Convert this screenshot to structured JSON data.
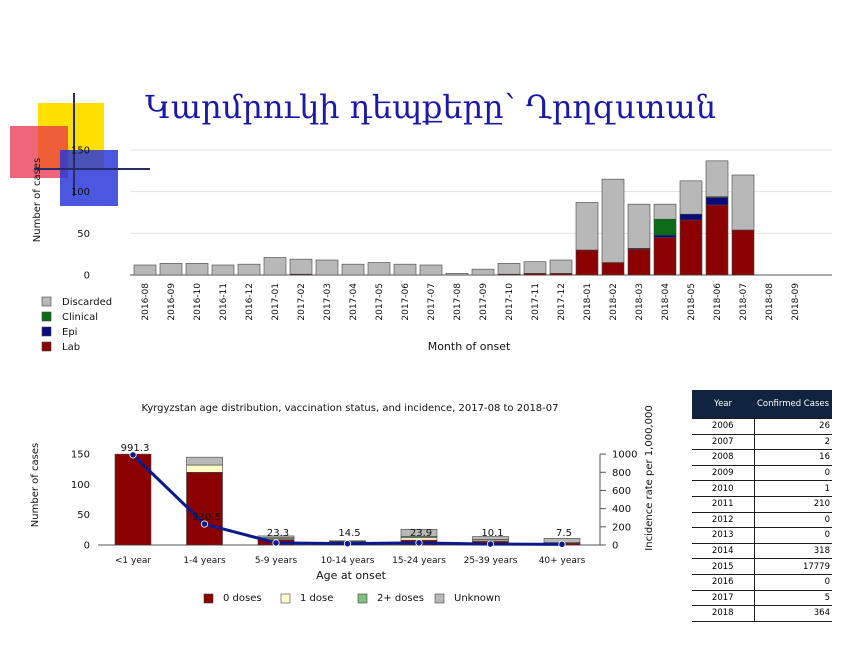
{
  "slide": {
    "title": "Կարմրուկի դեպքերը՝ Ղրղզստան",
    "colors": {
      "title": "#1a1aa6",
      "deco_yellow": "#ffe000",
      "deco_red": "#e8334a",
      "deco_blue": "#2a3ad8"
    }
  },
  "chart_data": [
    {
      "type": "bar",
      "stacked": true,
      "title": "",
      "xlabel": "Month of onset",
      "ylabel": "Number of cases",
      "ylim": [
        0,
        150
      ],
      "yticks": [
        0,
        50,
        100,
        150
      ],
      "grid": true,
      "legend_position": "bottom-left",
      "categories": [
        "2016-08",
        "2016-09",
        "2016-10",
        "2016-11",
        "2016-12",
        "2017-01",
        "2017-02",
        "2017-03",
        "2017-04",
        "2017-05",
        "2017-06",
        "2017-07",
        "2017-08",
        "2017-09",
        "2017-10",
        "2017-11",
        "2017-12",
        "2018-01",
        "2018-02",
        "2018-03",
        "2018-04",
        "2018-05",
        "2018-06",
        "2018-07",
        "2018-08",
        "2018-09"
      ],
      "series": [
        {
          "name": "Lab",
          "color": "#8b0000",
          "values": [
            0,
            0,
            0,
            0,
            0,
            0,
            1,
            0,
            0,
            0,
            0,
            0,
            0,
            0,
            1,
            2,
            2,
            30,
            15,
            31,
            45,
            66,
            84,
            54,
            0,
            0
          ]
        },
        {
          "name": "Epi",
          "color": "#0a0a7a",
          "values": [
            0,
            0,
            0,
            0,
            0,
            0,
            0,
            0,
            0,
            0,
            0,
            0,
            0,
            0,
            0,
            0,
            0,
            0,
            0,
            1,
            3,
            7,
            9,
            0,
            0,
            0
          ]
        },
        {
          "name": "Clinical",
          "color": "#0b6b16",
          "values": [
            0,
            0,
            0,
            0,
            0,
            0,
            0,
            0,
            0,
            0,
            0,
            0,
            0,
            0,
            0,
            0,
            0,
            0,
            0,
            0,
            19,
            0,
            1,
            0,
            0,
            0
          ]
        },
        {
          "name": "Discarded",
          "color": "#b8b8b8",
          "values": [
            12,
            14,
            14,
            12,
            13,
            21,
            18,
            18,
            13,
            15,
            13,
            12,
            2,
            7,
            13,
            14,
            16,
            57,
            100,
            53,
            18,
            40,
            43,
            66,
            0,
            0
          ]
        }
      ]
    },
    {
      "type": "bar",
      "stacked": true,
      "title": "Kyrgyzstan age distribution, vaccination status, and incidence, 2017-08 to 2018-07",
      "xlabel": "Age at onset",
      "ylabel": "Number of cases",
      "y2label": "Incidence rate per 1,000,000",
      "ylim": [
        0,
        175
      ],
      "yticks": [
        0,
        50,
        100,
        150
      ],
      "y2lim": [
        0,
        1166
      ],
      "y2ticks": [
        0,
        200,
        400,
        600,
        800,
        1000
      ],
      "legend_position": "bottom",
      "categories": [
        "<1 year",
        "1-4 years",
        "5-9 years",
        "10-14 years",
        "15-24 years",
        "25-39 years",
        "40+ years"
      ],
      "series": [
        {
          "name": "0 doses",
          "color": "#8b0000",
          "values": [
            150,
            120,
            9,
            4,
            8,
            6,
            3
          ]
        },
        {
          "name": "1 dose",
          "color": "#fffcc8",
          "values": [
            0,
            12,
            2,
            1,
            4,
            2,
            1
          ]
        },
        {
          "name": "2+ doses",
          "color": "#7fbf7f",
          "values": [
            0,
            0,
            1,
            1,
            2,
            1,
            0
          ]
        },
        {
          "name": "Unknown",
          "color": "#b8b8b8",
          "values": [
            0,
            13,
            3,
            1,
            12,
            5,
            7
          ]
        }
      ],
      "line": {
        "name": "Incidence",
        "color": "#0a1a8a",
        "axis": "y2",
        "values": [
          991.3,
          230.5,
          23.3,
          14.5,
          23.9,
          10.1,
          7.5
        ],
        "labels": [
          "991.3",
          "230.5",
          "23.3",
          "14.5",
          "23.9",
          "10.1",
          "7.5"
        ]
      }
    },
    {
      "type": "table",
      "columns": [
        "Year",
        "Confirmed Cases"
      ],
      "rows": [
        [
          "2006",
          "26"
        ],
        [
          "2007",
          "2"
        ],
        [
          "2008",
          "16"
        ],
        [
          "2009",
          "0"
        ],
        [
          "2010",
          "1"
        ],
        [
          "2011",
          "210"
        ],
        [
          "2012",
          "0"
        ],
        [
          "2013",
          "0"
        ],
        [
          "2014",
          "318"
        ],
        [
          "2015",
          "17779"
        ],
        [
          "2016",
          "0"
        ],
        [
          "2017",
          "5"
        ],
        [
          "2018",
          "364"
        ]
      ]
    }
  ]
}
